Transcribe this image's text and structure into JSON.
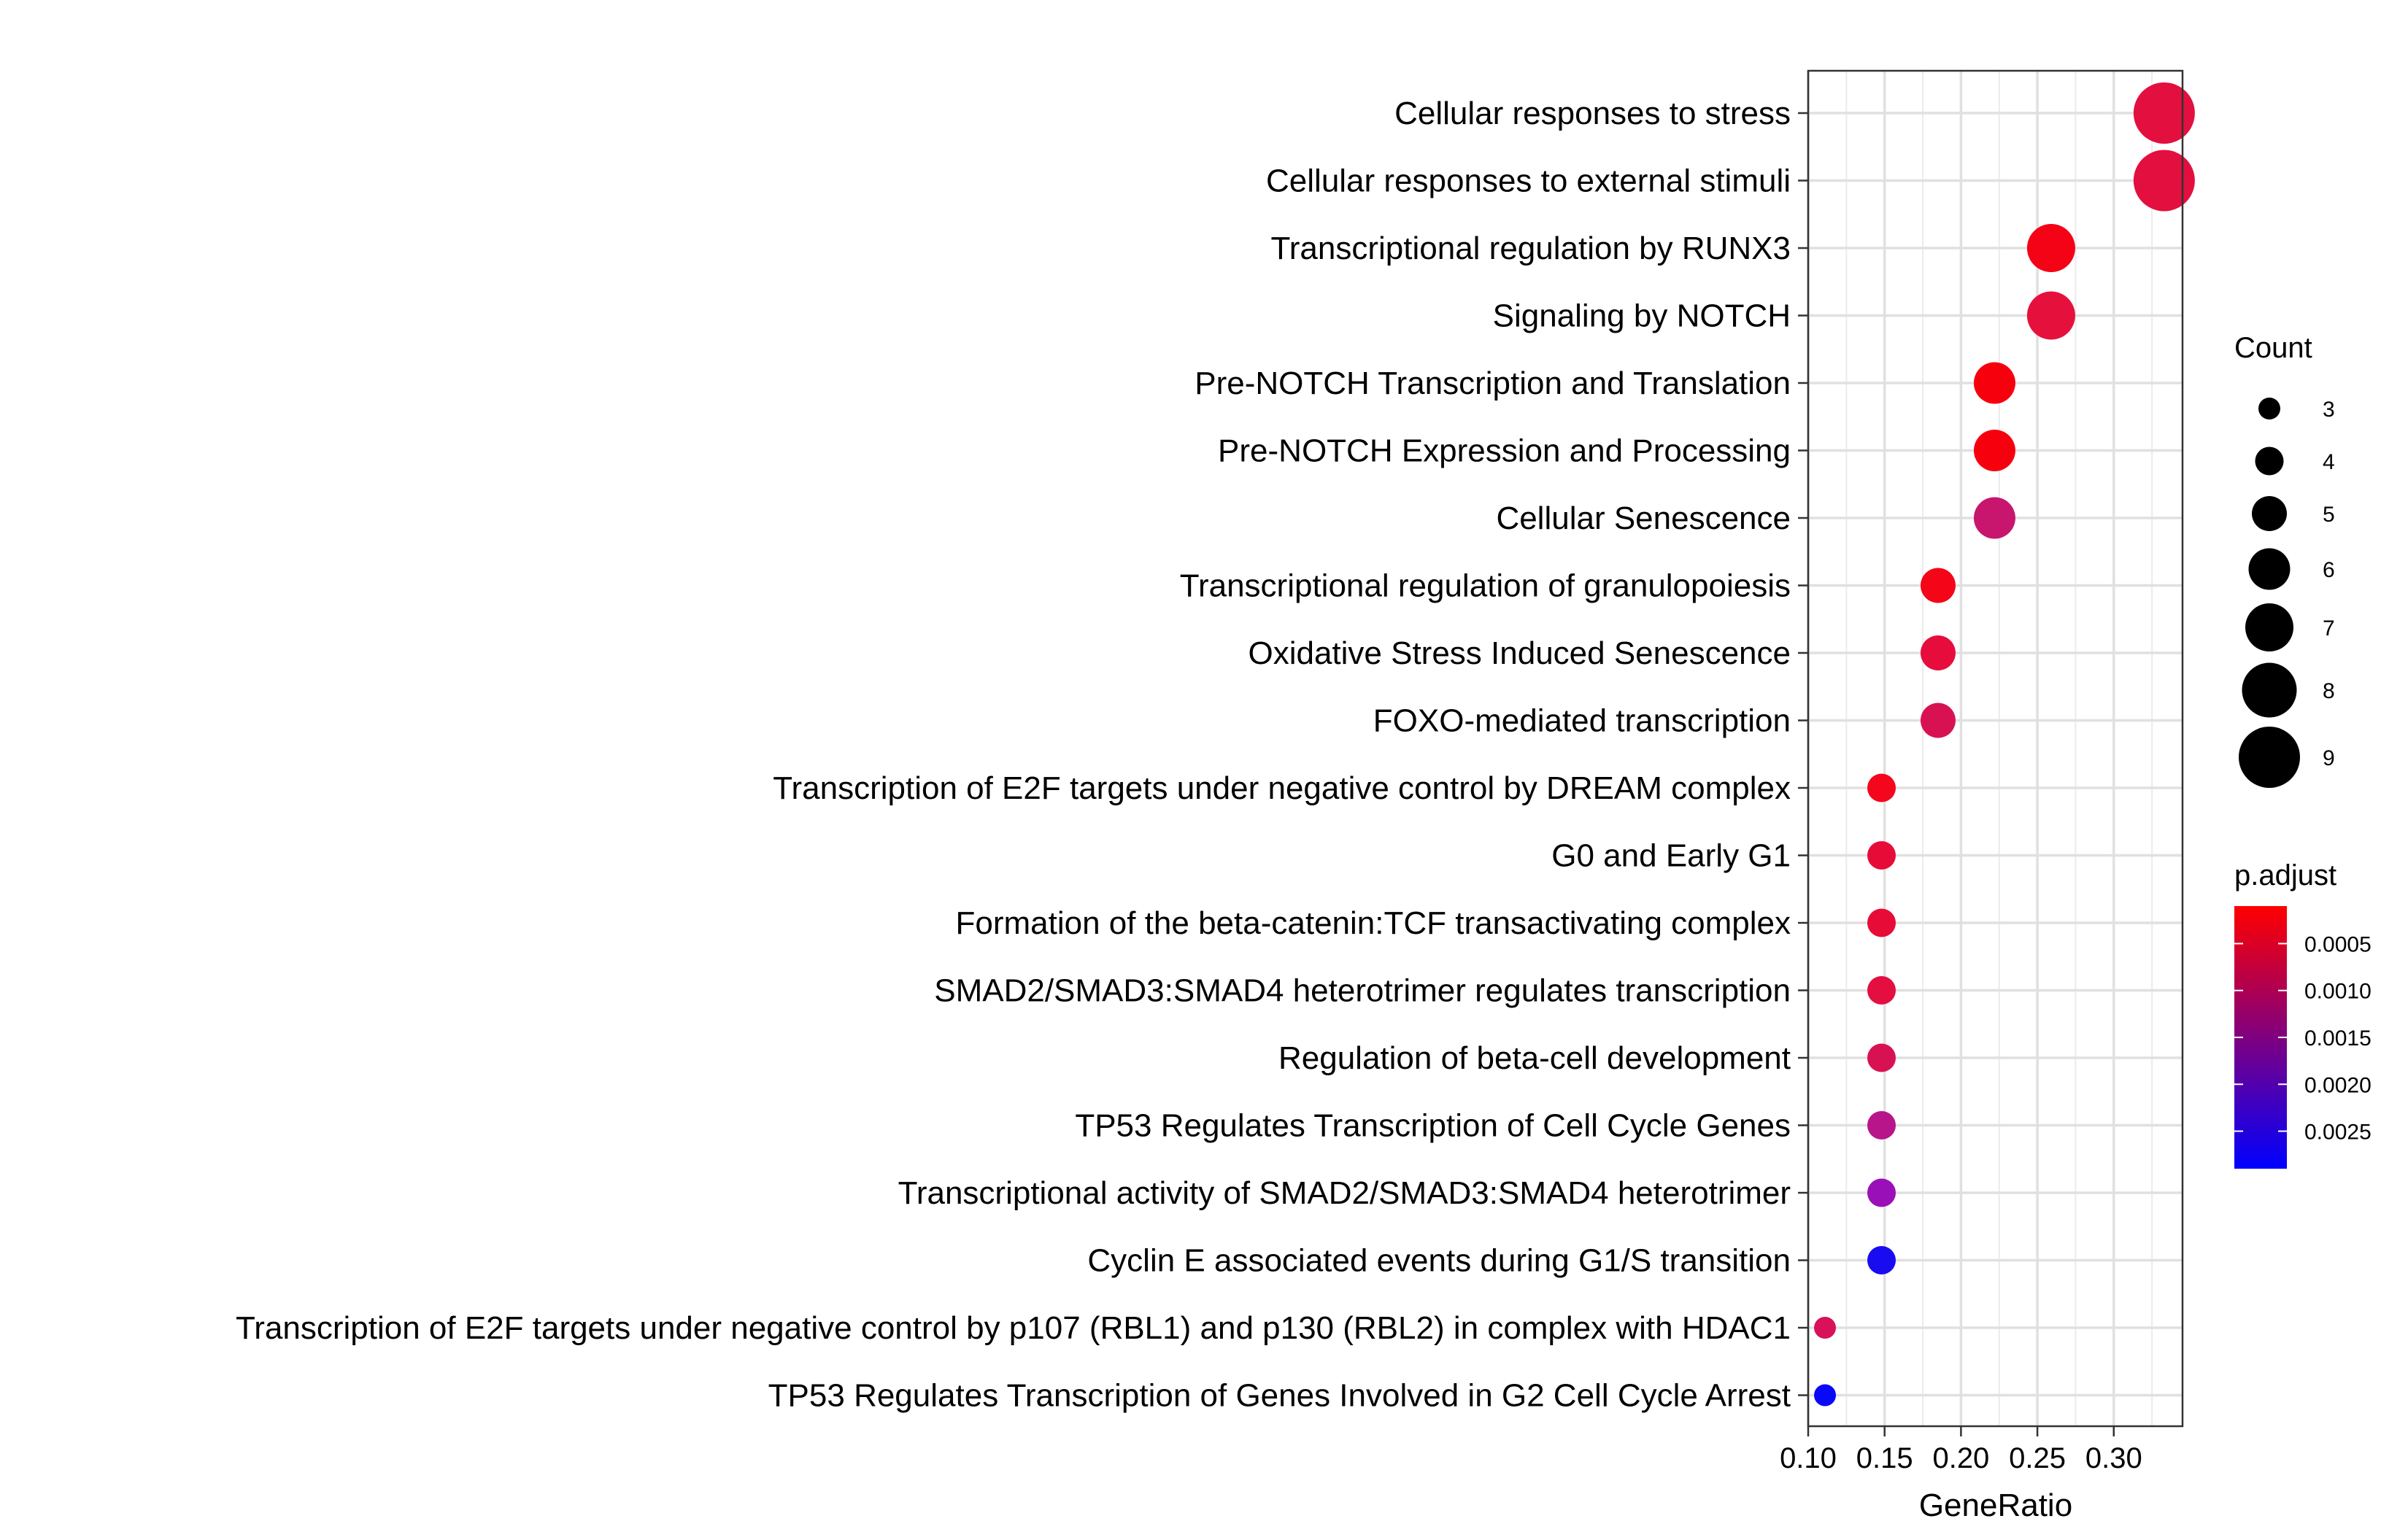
{
  "chart_data": {
    "type": "scatter",
    "xlabel": "GeneRatio",
    "ylabel": "",
    "xlim": [
      0.1,
      0.345
    ],
    "x_ticks": [
      "0.10",
      "0.15",
      "0.20",
      "0.25",
      "0.30"
    ],
    "x_tick_values": [
      0.1,
      0.15,
      0.2,
      0.25,
      0.3
    ],
    "grid": true,
    "legend_position": "right",
    "points": [
      {
        "term": "Cellular responses to stress",
        "gene_ratio": 0.333,
        "count": 9,
        "p_adjust": 0.001,
        "color": "#e30f3f"
      },
      {
        "term": "Cellular responses to external stimuli",
        "gene_ratio": 0.333,
        "count": 9,
        "p_adjust": 0.001,
        "color": "#e30f3f"
      },
      {
        "term": "Transcriptional regulation by RUNX3",
        "gene_ratio": 0.259,
        "count": 7,
        "p_adjust": 0.0004,
        "color": "#f40316"
      },
      {
        "term": "Signaling by NOTCH",
        "gene_ratio": 0.259,
        "count": 7,
        "p_adjust": 0.001,
        "color": "#e6103c"
      },
      {
        "term": "Pre-NOTCH Transcription and Translation",
        "gene_ratio": 0.222,
        "count": 6,
        "p_adjust": 0.0003,
        "color": "#f7000e"
      },
      {
        "term": "Pre-NOTCH Expression and Processing",
        "gene_ratio": 0.222,
        "count": 6,
        "p_adjust": 0.0003,
        "color": "#f7000e"
      },
      {
        "term": "Cellular Senescence",
        "gene_ratio": 0.222,
        "count": 6,
        "p_adjust": 0.0013,
        "color": "#c8166e"
      },
      {
        "term": "Transcriptional regulation of granulopoiesis",
        "gene_ratio": 0.185,
        "count": 5,
        "p_adjust": 0.0004,
        "color": "#f40518"
      },
      {
        "term": "Oxidative Stress Induced Senescence",
        "gene_ratio": 0.185,
        "count": 5,
        "p_adjust": 0.0009,
        "color": "#e60d3c"
      },
      {
        "term": "FOXO-mediated transcription",
        "gene_ratio": 0.185,
        "count": 5,
        "p_adjust": 0.0011,
        "color": "#d81252"
      },
      {
        "term": "Transcription of E2F targets under negative control by DREAM complex",
        "gene_ratio": 0.148,
        "count": 4,
        "p_adjust": 0.0004,
        "color": "#f4061c"
      },
      {
        "term": "G0 and Early G1",
        "gene_ratio": 0.148,
        "count": 4,
        "p_adjust": 0.0008,
        "color": "#e70c38"
      },
      {
        "term": "Formation of the beta-catenin:TCF transactivating complex",
        "gene_ratio": 0.148,
        "count": 4,
        "p_adjust": 0.0008,
        "color": "#e70c38"
      },
      {
        "term": "SMAD2/SMAD3:SMAD4 heterotrimer regulates transcription",
        "gene_ratio": 0.148,
        "count": 4,
        "p_adjust": 0.0009,
        "color": "#e40e40"
      },
      {
        "term": "Regulation of beta-cell development",
        "gene_ratio": 0.148,
        "count": 4,
        "p_adjust": 0.0011,
        "color": "#d81252"
      },
      {
        "term": "TP53 Regulates Transcription of Cell Cycle Genes",
        "gene_ratio": 0.148,
        "count": 4,
        "p_adjust": 0.0015,
        "color": "#b8158a"
      },
      {
        "term": "Transcriptional activity of SMAD2/SMAD3:SMAD4 heterotrimer",
        "gene_ratio": 0.148,
        "count": 4,
        "p_adjust": 0.0019,
        "color": "#9a10b8"
      },
      {
        "term": "Cyclin E associated events during G1/S transition ",
        "gene_ratio": 0.148,
        "count": 4,
        "p_adjust": 0.0027,
        "color": "#1a0cf0"
      },
      {
        "term": "Transcription of E2F targets under negative control by p107 (RBL1) and p130 (RBL2) in complex with HDAC1",
        "gene_ratio": 0.111,
        "count": 3,
        "p_adjust": 0.0011,
        "color": "#d8125a"
      },
      {
        "term": "TP53 Regulates Transcription of Genes Involved in G2 Cell Cycle Arrest",
        "gene_ratio": 0.111,
        "count": 3,
        "p_adjust": 0.0028,
        "color": "#0a08f8"
      }
    ],
    "legend_count": {
      "title": "Count",
      "values": [
        3,
        4,
        5,
        6,
        7,
        8,
        9
      ],
      "labels": [
        "3",
        "4",
        "5",
        "6",
        "7",
        "8",
        "9"
      ]
    },
    "legend_padjust": {
      "title": "p.adjust",
      "labels": [
        "0.0005",
        "0.0010",
        "0.0015",
        "0.0020",
        "0.0025"
      ],
      "values": [
        0.0005,
        0.001,
        0.0015,
        0.002,
        0.0025
      ],
      "range": [
        0.0001,
        0.0029
      ],
      "color_low": "#ff0000",
      "color_high": "#0000ff"
    }
  }
}
